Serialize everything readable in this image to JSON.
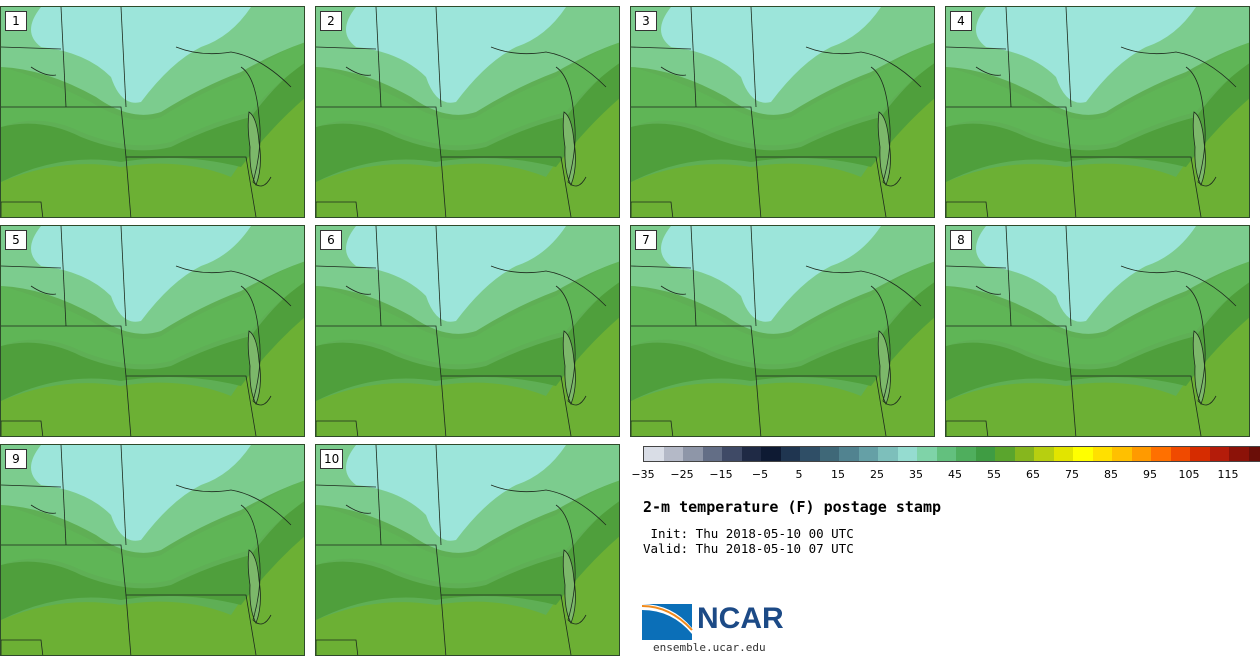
{
  "panels": [
    "1",
    "2",
    "3",
    "4",
    "5",
    "6",
    "7",
    "8",
    "9",
    "10"
  ],
  "colorbar": {
    "colors": [
      "#d9dde6",
      "#b4b9c7",
      "#8e96a8",
      "#636e86",
      "#3f4a66",
      "#1f2a45",
      "#0e1a33",
      "#1f3550",
      "#2f4e66",
      "#3f6878",
      "#518390",
      "#65a0a6",
      "#7dbfbb",
      "#95dcd0",
      "#7fd3a8",
      "#63c07e",
      "#4fae5d",
      "#3f9c43",
      "#5aa52d",
      "#86b61e",
      "#b7cf10",
      "#e2e400",
      "#ffff00",
      "#ffe000",
      "#ffc000",
      "#ff9a00",
      "#ff7000",
      "#f04a00",
      "#d62c00",
      "#b41c0a",
      "#8c1208",
      "#6a0e08"
    ],
    "ticks": [
      "−35",
      "−25",
      "−15",
      "−5",
      "5",
      "15",
      "25",
      "35",
      "45",
      "55",
      "65",
      "75",
      "85",
      "95",
      "105",
      "115"
    ]
  },
  "title": "2-m temperature (F) postage stamp",
  "init_text": " Init: Thu 2018-05-10 00 UTC",
  "valid_text": "Valid: Thu 2018-05-10 07 UTC",
  "logo": {
    "name": "NCAR",
    "url": "ensemble.ucar.edu"
  }
}
